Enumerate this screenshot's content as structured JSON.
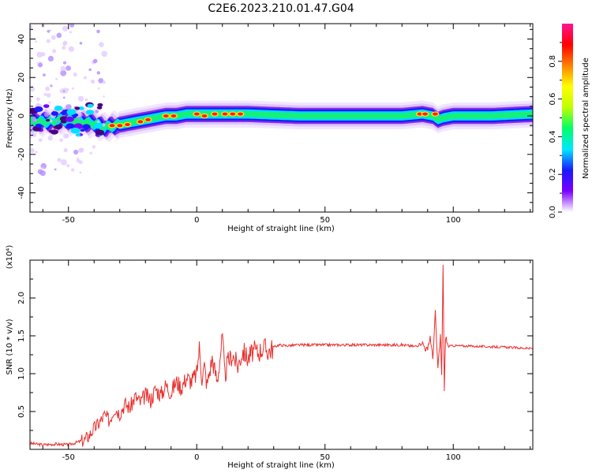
{
  "title": "C2E6.2023.210.01.47.G04",
  "colors": {
    "snr_line": "#e8302e",
    "axis": "#000000"
  },
  "chart_data": [
    {
      "type": "heatmap",
      "title": "C2E6.2023.210.01.47.G04",
      "xlabel": "Height of straight line (km)",
      "ylabel": "Frequency (Hz)",
      "xlim": [
        -65,
        131
      ],
      "ylim": [
        -50,
        48
      ],
      "xticks": [
        -50,
        0,
        50,
        100
      ],
      "yticks": [
        -40,
        -20,
        0,
        20,
        40
      ],
      "xtick_labels": [
        "-50",
        "0",
        "50",
        "100"
      ],
      "ytick_labels": [
        "-40",
        "-20",
        "0",
        "20",
        "40"
      ],
      "colorbar": {
        "label": "Normalized spectral amplitude",
        "range": [
          0,
          1
        ],
        "ticks": [
          0,
          0.2,
          0.4,
          0.6,
          0.8
        ],
        "tick_labels": [
          "0.0",
          "0.2",
          "0.4",
          "0.6",
          "0.8"
        ],
        "stops": [
          "#ffffff",
          "#7a00ff",
          "#1a1aff",
          "#00e8ff",
          "#00ff66",
          "#c0ff00",
          "#ffff00",
          "#ff8000",
          "#ff0000",
          "#ff1493"
        ]
      },
      "ridge": {
        "x": [
          -65,
          -58,
          -52,
          -46,
          -40,
          -36,
          -32,
          -28,
          -24,
          -20,
          -16,
          -12,
          -8,
          -4,
          0,
          5,
          10,
          20,
          40,
          60,
          80,
          88,
          92,
          94,
          96,
          100,
          115,
          131
        ],
        "y": [
          -3,
          -3,
          -2,
          -3,
          -4,
          -6,
          -5,
          -4,
          -3,
          -2,
          -1,
          0,
          0,
          1,
          1,
          1,
          1,
          1,
          0,
          0,
          0,
          1,
          0,
          -2,
          -1,
          0,
          0,
          1
        ]
      },
      "peaks": [
        {
          "x": -33,
          "y": -5
        },
        {
          "x": -30,
          "y": -5
        },
        {
          "x": -27,
          "y": -4.5
        },
        {
          "x": -22,
          "y": -3
        },
        {
          "x": -19,
          "y": -2
        },
        {
          "x": -12,
          "y": 0
        },
        {
          "x": -9,
          "y": 0
        },
        {
          "x": 0,
          "y": 1
        },
        {
          "x": 3,
          "y": 0
        },
        {
          "x": 7,
          "y": 1
        },
        {
          "x": 11,
          "y": 1
        },
        {
          "x": 14,
          "y": 1
        },
        {
          "x": 17,
          "y": 1
        },
        {
          "x": 87,
          "y": 1
        },
        {
          "x": 89,
          "y": 1
        },
        {
          "x": 93,
          "y": 1
        }
      ]
    },
    {
      "type": "line",
      "xlabel": "Height of straight line (km)",
      "ylabel": "SNR (10 * v/v)",
      "yunit_label": "(x10⁴)",
      "xlim": [
        -65,
        131
      ],
      "ylim": [
        0,
        2.5
      ],
      "xticks": [
        -50,
        0,
        50,
        100
      ],
      "yticks": [
        0.5,
        1.0,
        1.5,
        2.0
      ],
      "xtick_labels": [
        "-50",
        "0",
        "50",
        "100"
      ],
      "ytick_labels": [
        "0.5",
        "1.0",
        "1.5",
        "2.0"
      ],
      "series": [
        {
          "x": [
            -65,
            -60,
            -55,
            -50,
            -48,
            -46,
            -44,
            -42,
            -40,
            -38,
            -36,
            -34,
            -32,
            -30,
            -28,
            -26,
            -24,
            -22,
            -20,
            -18,
            -16,
            -14,
            -12,
            -10,
            -8,
            -6,
            -4,
            -2,
            0,
            1,
            2,
            3,
            4,
            6,
            8,
            10,
            11,
            12,
            14,
            16,
            18,
            20,
            22,
            24,
            26,
            28,
            30,
            32,
            35,
            40,
            50,
            60,
            70,
            80,
            85,
            88,
            90,
            91,
            92,
            93,
            94,
            95,
            95.5,
            96,
            96.5,
            97,
            98,
            100,
            110,
            120,
            131
          ],
          "y": [
            0.08,
            0.06,
            0.07,
            0.06,
            0.08,
            0.1,
            0.12,
            0.18,
            0.28,
            0.35,
            0.45,
            0.38,
            0.55,
            0.48,
            0.6,
            0.55,
            0.7,
            0.62,
            0.72,
            0.65,
            0.8,
            0.72,
            0.85,
            0.75,
            0.9,
            0.82,
            0.95,
            0.9,
            1.0,
            1.35,
            0.95,
            1.1,
            0.85,
            1.2,
            0.9,
            1.48,
            0.95,
            1.15,
            1.25,
            1.1,
            1.3,
            1.2,
            1.3,
            1.28,
            1.35,
            1.3,
            1.35,
            1.38,
            1.37,
            1.38,
            1.38,
            1.38,
            1.38,
            1.38,
            1.36,
            1.4,
            1.3,
            1.5,
            1.2,
            1.8,
            1.05,
            1.5,
            0.95,
            2.45,
            0.75,
            1.5,
            1.36,
            1.37,
            1.36,
            1.35,
            1.33
          ]
        }
      ]
    }
  ]
}
